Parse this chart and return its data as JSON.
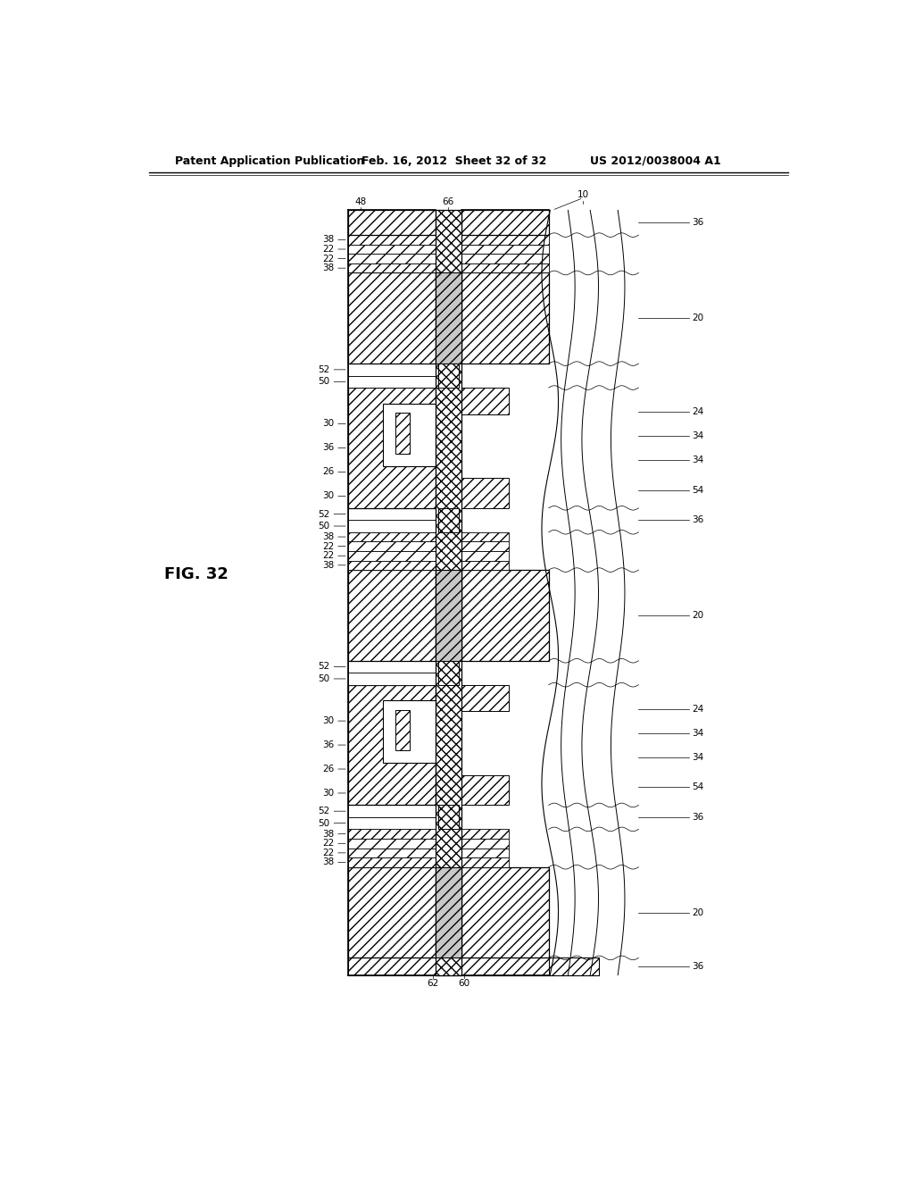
{
  "header_left": "Patent Application Publication",
  "header_mid": "Feb. 16, 2012  Sheet 32 of 32",
  "header_right": "US 2012/0038004 A1",
  "figure_label": "FIG. 32",
  "bg_color": "#ffffff",
  "line_color": "#000000"
}
